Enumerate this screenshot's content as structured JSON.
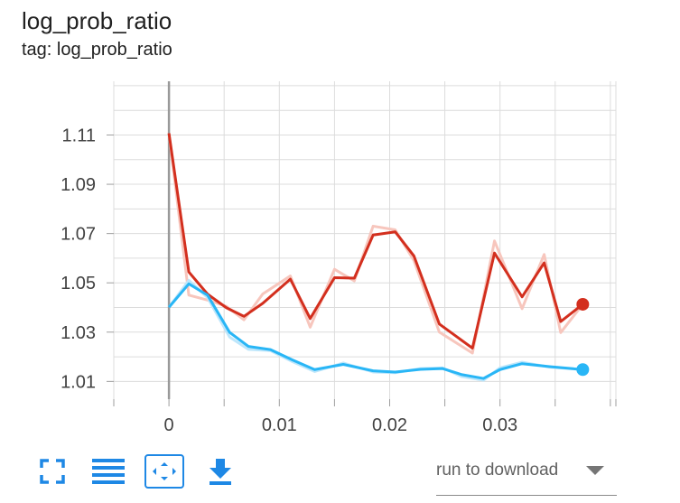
{
  "header": {
    "title": "log_prob_ratio",
    "tag_line": "tag: log_prob_ratio"
  },
  "toolbar": {
    "items": [
      {
        "icon": "fullscreen-icon"
      },
      {
        "icon": "toggle-y-log-icon"
      },
      {
        "icon": "fit-domain-icon"
      },
      {
        "icon": "download-icon"
      }
    ],
    "accent_color": "#1e88e5"
  },
  "run_selector": {
    "label": "run to download"
  },
  "chart_data": {
    "type": "line",
    "title": "",
    "xlabel": "",
    "ylabel": "",
    "xlim": [
      -0.005,
      0.0405
    ],
    "ylim": [
      1.0028,
      1.1318
    ],
    "grid": true,
    "x_ticks": [
      0,
      0.01,
      0.02,
      0.03
    ],
    "x_tick_labels": [
      "0",
      "0.01",
      "0.02",
      "0.03"
    ],
    "y_ticks": [
      1.01,
      1.03,
      1.05,
      1.07,
      1.09,
      1.11
    ],
    "y_tick_labels": [
      "1.01",
      "1.03",
      "1.05",
      "1.07",
      "1.09",
      "1.11"
    ],
    "series": [
      {
        "color": "#d32f1e",
        "raw_color": "#f7c6bd",
        "x": [
          0,
          0.0018,
          0.0035,
          0.0052,
          0.0068,
          0.0085,
          0.011,
          0.0128,
          0.015,
          0.0168,
          0.0185,
          0.0205,
          0.0222,
          0.0245,
          0.0275,
          0.0295,
          0.032,
          0.034,
          0.0355,
          0.0375
        ],
        "values": [
          1.1107,
          1.0544,
          1.0454,
          1.0399,
          1.0364,
          1.0417,
          1.0515,
          1.0355,
          1.0521,
          1.0519,
          1.0694,
          1.0707,
          1.0609,
          1.0333,
          1.0235,
          1.0621,
          1.0443,
          1.0581,
          1.0343,
          1.0413
        ],
        "raw_values": [
          1.1107,
          1.045,
          1.043,
          1.0405,
          1.035,
          1.0455,
          1.0528,
          1.032,
          1.0555,
          1.0508,
          1.073,
          1.0715,
          1.059,
          1.03,
          1.0215,
          1.067,
          1.0395,
          1.0615,
          1.0298,
          1.0413
        ]
      },
      {
        "color": "#29b6f6",
        "raw_color": "#bde6fb",
        "x": [
          0,
          0.0018,
          0.0035,
          0.0055,
          0.0072,
          0.0092,
          0.0112,
          0.0132,
          0.0158,
          0.0185,
          0.0205,
          0.0228,
          0.0248,
          0.0265,
          0.0285,
          0.03,
          0.032,
          0.0345,
          0.0375
        ],
        "values": [
          1.0401,
          1.0496,
          1.045,
          1.0299,
          1.0242,
          1.0229,
          1.0187,
          1.0148,
          1.0169,
          1.0143,
          1.0138,
          1.0149,
          1.0152,
          1.0128,
          1.0112,
          1.0148,
          1.0172,
          1.016,
          1.0148
        ],
        "raw_values": [
          1.0401,
          1.051,
          1.044,
          1.028,
          1.023,
          1.0225,
          1.018,
          1.014,
          1.0175,
          1.0138,
          1.0135,
          1.0152,
          1.0155,
          1.012,
          1.0105,
          1.0155,
          1.0178,
          1.0158,
          1.0148
        ]
      }
    ]
  }
}
